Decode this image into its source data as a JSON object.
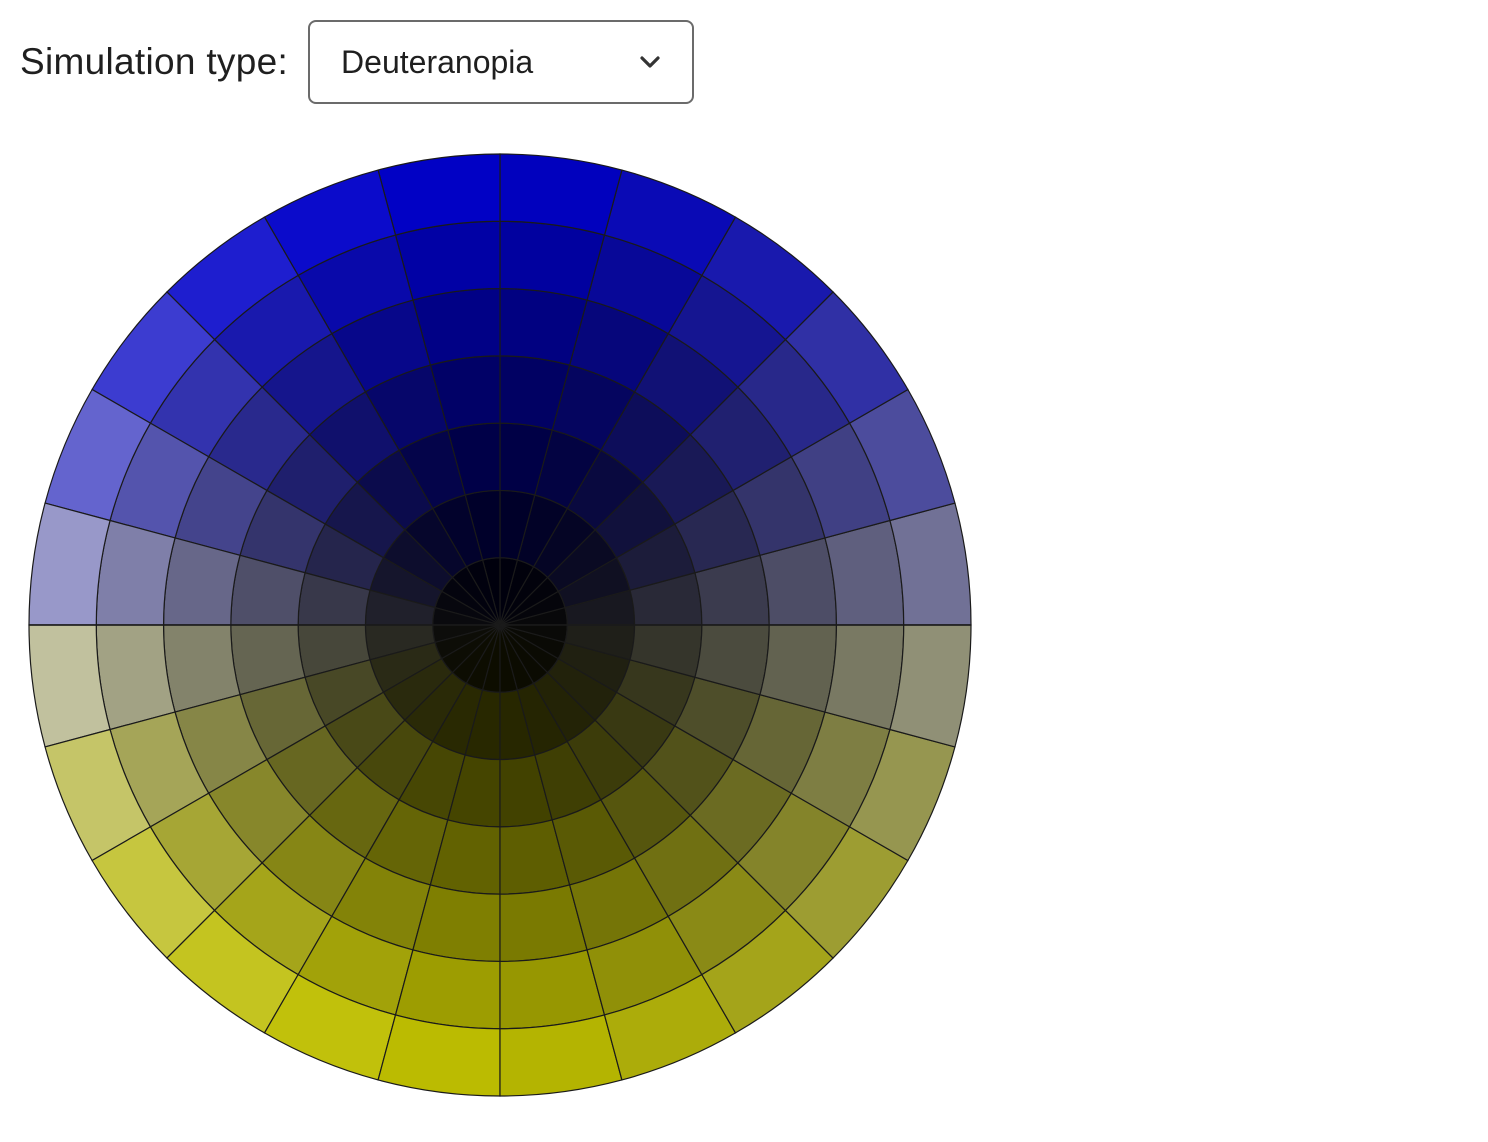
{
  "simulation": {
    "label": "Simulation type:",
    "selected": "Deuteranopia"
  },
  "icons": {
    "dropdown": "chevron-down-icon"
  },
  "wheel": {
    "rings": 7,
    "sectors": 24,
    "outline_color": "#1a1a1a",
    "cool_color": "#0000ff",
    "warm_color": "#f2f200",
    "neutral_color": "#d9d9e2"
  }
}
